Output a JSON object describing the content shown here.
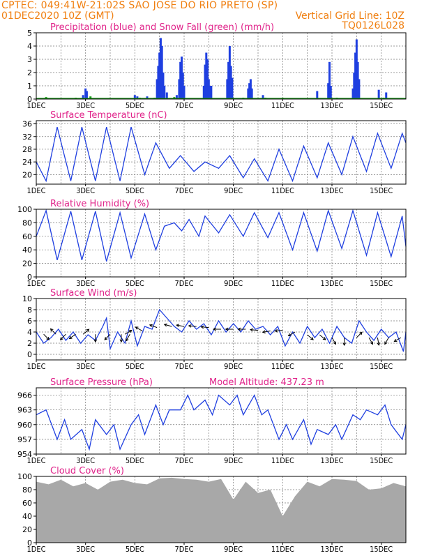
{
  "header": {
    "line1": "CPTEC:   049:41W-21:02S  SAO JOSE DO RIO PRETO (SP)",
    "line2": "01DEC2020 10Z (GMT)",
    "grid_note": "Vertical Grid Line: 10Z",
    "code": "TQ0126L028"
  },
  "colors": {
    "header": "#f07f10",
    "title": "#e0238a",
    "line": "#1f3fe0",
    "snow": "#1a9c1a",
    "cloud": "#a8a8a8",
    "arrow": "#000000"
  },
  "chart_data": [
    {
      "type": "bar",
      "title": "Precipitation (blue) and Snow Fall (green) (mm/h)",
      "ylim": [
        0,
        5
      ],
      "yticks": [
        0,
        1,
        2,
        3,
        4,
        5
      ],
      "x_days": [
        "1DEC",
        "3DEC",
        "5DEC",
        "7DEC",
        "9DEC",
        "11DEC",
        "13DEC",
        "15DEC"
      ],
      "series": [
        {
          "name": "blue",
          "points": [
            [
              2.9,
              0.3
            ],
            [
              3.0,
              0.8
            ],
            [
              3.05,
              0.6
            ],
            [
              5.0,
              0.3
            ],
            [
              5.1,
              0.2
            ],
            [
              5.5,
              0.2
            ],
            [
              5.9,
              1.5
            ],
            [
              5.95,
              2.5
            ],
            [
              6.0,
              3.5
            ],
            [
              6.05,
              4.6
            ],
            [
              6.1,
              4.0
            ],
            [
              6.15,
              2.0
            ],
            [
              6.2,
              1.0
            ],
            [
              6.3,
              0.5
            ],
            [
              6.7,
              0.3
            ],
            [
              6.8,
              1.5
            ],
            [
              6.85,
              2.8
            ],
            [
              6.9,
              3.2
            ],
            [
              6.95,
              2.0
            ],
            [
              7.0,
              1.0
            ],
            [
              7.8,
              1.0
            ],
            [
              7.85,
              2.6
            ],
            [
              7.9,
              3.5
            ],
            [
              7.95,
              3.0
            ],
            [
              8.0,
              1.5
            ],
            [
              8.05,
              1.0
            ],
            [
              8.1,
              1.0
            ],
            [
              8.75,
              1.5
            ],
            [
              8.8,
              2.8
            ],
            [
              8.85,
              4.0
            ],
            [
              8.9,
              2.5
            ],
            [
              8.95,
              1.6
            ],
            [
              9.6,
              0.8
            ],
            [
              9.65,
              1.2
            ],
            [
              9.7,
              1.5
            ],
            [
              9.75,
              0.8
            ],
            [
              10.2,
              0.3
            ],
            [
              12.4,
              0.6
            ],
            [
              12.85,
              1.2
            ],
            [
              12.9,
              2.8
            ],
            [
              12.95,
              1.0
            ],
            [
              13.85,
              0.8
            ],
            [
              13.9,
              2.0
            ],
            [
              13.95,
              3.5
            ],
            [
              14.0,
              4.5
            ],
            [
              14.05,
              2.8
            ],
            [
              14.1,
              1.5
            ],
            [
              14.9,
              0.7
            ],
            [
              15.2,
              0.5
            ]
          ]
        },
        {
          "name": "green",
          "points": [
            [
              1.4,
              0.15
            ],
            [
              2.6,
              0.1
            ],
            [
              3.2,
              0.2
            ],
            [
              5.2,
              0.1
            ],
            [
              5.8,
              0.1
            ],
            [
              6.6,
              0.15
            ],
            [
              9.4,
              0.1
            ],
            [
              10.3,
              0.1
            ],
            [
              11.0,
              0.1
            ],
            [
              13.2,
              0.1
            ],
            [
              15.1,
              0.1
            ]
          ]
        }
      ]
    },
    {
      "type": "line",
      "title": "Surface Temperature (nC)",
      "ylim": [
        17,
        37
      ],
      "yticks": [
        20,
        24,
        28,
        32,
        36
      ],
      "x_days": [
        "1DEC",
        "3DEC",
        "5DEC",
        "7DEC",
        "9DEC",
        "11DEC",
        "13DEC",
        "15DEC"
      ],
      "x": [
        1.0,
        1.4,
        1.85,
        2.4,
        2.85,
        3.4,
        3.85,
        4.4,
        4.85,
        5.4,
        5.85,
        6.4,
        6.85,
        7.4,
        7.85,
        8.4,
        8.85,
        9.4,
        9.85,
        10.4,
        10.85,
        11.4,
        11.85,
        12.4,
        12.85,
        13.4,
        13.85,
        14.4,
        14.85,
        15.4,
        15.85,
        16.0
      ],
      "y": [
        24,
        18,
        35,
        18,
        35,
        18,
        35,
        18,
        35,
        20,
        30,
        22,
        26,
        21,
        24,
        22,
        26,
        19,
        25,
        18,
        28,
        18,
        29,
        19,
        30,
        20,
        32,
        21,
        33,
        22,
        33,
        30
      ]
    },
    {
      "type": "line",
      "title": "Relative Humidity (%)",
      "ylim": [
        0,
        100
      ],
      "yticks": [
        0,
        20,
        40,
        60,
        80,
        100
      ],
      "x_days": [
        "1DEC",
        "3DEC",
        "5DEC",
        "7DEC",
        "9DEC",
        "11DEC",
        "13DEC",
        "15DEC"
      ],
      "x": [
        1.0,
        1.4,
        1.85,
        2.4,
        2.85,
        3.4,
        3.85,
        4.4,
        4.85,
        5.4,
        5.85,
        6.2,
        6.6,
        6.9,
        7.2,
        7.6,
        7.85,
        8.4,
        8.85,
        9.4,
        9.85,
        10.4,
        10.85,
        11.4,
        11.85,
        12.4,
        12.85,
        13.4,
        13.85,
        14.4,
        14.85,
        15.4,
        15.85,
        16.0
      ],
      "y": [
        60,
        98,
        25,
        97,
        25,
        97,
        23,
        95,
        28,
        93,
        40,
        75,
        80,
        68,
        85,
        60,
        90,
        65,
        92,
        60,
        95,
        58,
        95,
        40,
        95,
        38,
        98,
        42,
        98,
        32,
        95,
        30,
        90,
        45
      ]
    },
    {
      "type": "line",
      "title": "Surface Wind (m/s)",
      "ylim": [
        -1,
        10
      ],
      "yticks": [
        0,
        2,
        4,
        6,
        8,
        10
      ],
      "x_days": [
        "1DEC",
        "3DEC",
        "5DEC",
        "7DEC",
        "9DEC",
        "11DEC",
        "13DEC",
        "15DEC"
      ],
      "x": [
        1.0,
        1.3,
        1.6,
        1.9,
        2.2,
        2.5,
        2.8,
        3.1,
        3.4,
        3.7,
        3.85,
        4.0,
        4.3,
        4.6,
        4.85,
        5.1,
        5.4,
        5.7,
        6.0,
        6.3,
        6.6,
        6.9,
        7.2,
        7.5,
        7.8,
        8.1,
        8.4,
        8.7,
        9.0,
        9.3,
        9.6,
        9.9,
        10.2,
        10.5,
        10.8,
        11.1,
        11.4,
        11.7,
        12.0,
        12.3,
        12.6,
        12.9,
        13.2,
        13.5,
        13.8,
        14.1,
        14.4,
        14.7,
        15.0,
        15.3,
        15.6,
        15.9,
        16.0
      ],
      "y": [
        4.0,
        2.0,
        3.0,
        4.5,
        2.5,
        4.0,
        2.0,
        3.5,
        2.5,
        5.0,
        6.5,
        1.0,
        4.0,
        2.0,
        6.0,
        1.5,
        5.0,
        4.5,
        8.0,
        6.5,
        5.0,
        4.0,
        6.0,
        4.5,
        5.5,
        3.5,
        6.0,
        4.0,
        5.5,
        4.0,
        6.0,
        4.5,
        5.0,
        3.5,
        5.0,
        1.5,
        4.0,
        2.0,
        5.0,
        3.0,
        4.5,
        2.0,
        5.0,
        3.0,
        2.0,
        6.0,
        4.0,
        2.5,
        4.5,
        3.0,
        4.0,
        0.5,
        4.0
      ],
      "arrows": [
        [
          1.3,
          3.6,
          -45
        ],
        [
          1.8,
          3.6,
          135
        ],
        [
          2.2,
          3.6,
          -135
        ],
        [
          2.6,
          3.6,
          -145
        ],
        [
          2.9,
          3.6,
          40
        ],
        [
          3.4,
          3.6,
          -90
        ],
        [
          4.0,
          3.6,
          -135
        ],
        [
          4.45,
          3.6,
          -90
        ],
        [
          4.6,
          3.6,
          30
        ],
        [
          4.8,
          3.6,
          -120
        ],
        [
          5.3,
          4.2,
          150
        ],
        [
          5.9,
          4.8,
          160
        ],
        [
          6.5,
          5.0,
          165
        ],
        [
          7.0,
          5.0,
          170
        ],
        [
          7.5,
          5.0,
          175
        ],
        [
          8.0,
          4.8,
          175
        ],
        [
          8.5,
          4.5,
          180
        ],
        [
          9.0,
          4.5,
          180
        ],
        [
          9.5,
          4.5,
          180
        ],
        [
          10.0,
          4.3,
          175
        ],
        [
          10.5,
          4.2,
          -170
        ],
        [
          11.0,
          4.3,
          -175
        ],
        [
          11.5,
          4.0,
          -150
        ],
        [
          12.0,
          3.5,
          -40
        ],
        [
          12.5,
          3.5,
          -40
        ],
        [
          13.0,
          3.0,
          -60
        ],
        [
          13.5,
          3.0,
          -90
        ],
        [
          14.0,
          3.0,
          45
        ],
        [
          14.5,
          3.0,
          -60
        ],
        [
          14.85,
          3.0,
          -80
        ],
        [
          15.3,
          3.0,
          -120
        ],
        [
          15.8,
          3.0,
          -150
        ]
      ]
    },
    {
      "type": "line",
      "title": "Surface Pressure (hPa)",
      "annotation": "Model Altitude: 437.23 m",
      "ylim": [
        954,
        967.5
      ],
      "yticks": [
        954,
        957,
        960,
        963,
        966
      ],
      "x_days": [
        "1DEC",
        "3DEC",
        "5DEC",
        "7DEC",
        "9DEC",
        "11DEC",
        "13DEC",
        "15DEC"
      ],
      "x": [
        1.0,
        1.4,
        1.85,
        2.15,
        2.4,
        2.85,
        3.15,
        3.4,
        3.85,
        4.15,
        4.4,
        4.85,
        5.15,
        5.4,
        5.85,
        6.15,
        6.4,
        6.85,
        7.15,
        7.4,
        7.85,
        8.15,
        8.4,
        8.85,
        9.15,
        9.4,
        9.85,
        10.15,
        10.4,
        10.85,
        11.15,
        11.4,
        11.85,
        12.15,
        12.4,
        12.85,
        13.15,
        13.4,
        13.85,
        14.15,
        14.4,
        14.85,
        15.15,
        15.4,
        15.85,
        16.0
      ],
      "y": [
        962,
        963,
        957,
        961,
        957,
        959,
        955,
        961,
        958,
        960,
        955,
        960,
        962,
        958,
        964,
        960,
        963,
        963,
        966,
        963,
        965,
        962,
        966,
        964,
        966,
        962,
        966,
        962,
        963,
        957,
        960,
        957,
        961,
        956,
        959,
        958,
        960,
        957,
        962,
        961,
        963,
        962,
        964,
        960,
        957,
        960
      ]
    },
    {
      "type": "bar",
      "title": "Cloud Cover (%)",
      "ylim": [
        0,
        100
      ],
      "yticks": [
        0,
        20,
        40,
        60,
        80,
        100
      ],
      "x_days": [
        "1DEC",
        "3DEC",
        "5DEC",
        "7DEC",
        "9DEC",
        "11DEC",
        "13DEC",
        "15DEC"
      ],
      "x": [
        1.0,
        1.5,
        2.0,
        2.5,
        3.0,
        3.5,
        4.0,
        4.5,
        5.0,
        5.5,
        6.0,
        6.5,
        7.0,
        7.5,
        8.0,
        8.5,
        9.0,
        9.5,
        10.0,
        10.5,
        11.0,
        11.5,
        12.0,
        12.5,
        13.0,
        13.5,
        14.0,
        14.5,
        15.0,
        15.5,
        16.0
      ],
      "y": [
        92,
        88,
        95,
        85,
        90,
        80,
        92,
        95,
        90,
        88,
        97,
        98,
        96,
        95,
        92,
        96,
        65,
        92,
        75,
        80,
        40,
        70,
        92,
        85,
        96,
        95,
        93,
        80,
        82,
        90,
        85
      ]
    }
  ]
}
